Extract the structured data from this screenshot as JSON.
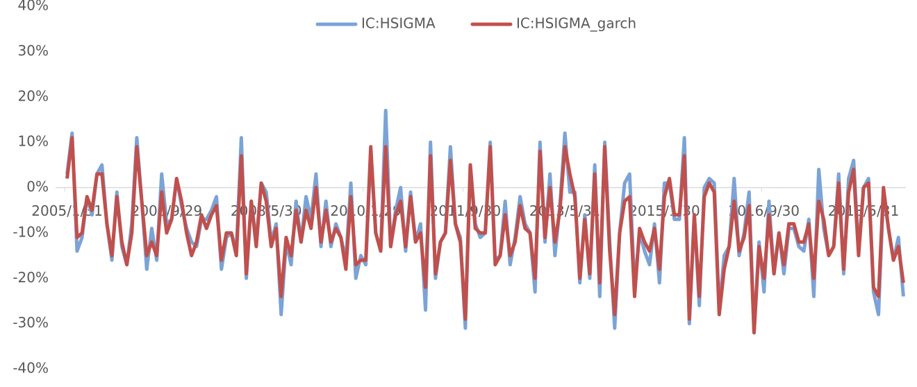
{
  "chart_data": {
    "type": "line",
    "categories": [
      "2005/1/31",
      null,
      null,
      null,
      null,
      null,
      null,
      null,
      null,
      null,
      null,
      null,
      null,
      null,
      null,
      null,
      null,
      null,
      null,
      null,
      "2006/9/29",
      null,
      null,
      null,
      null,
      null,
      null,
      null,
      null,
      null,
      null,
      null,
      null,
      null,
      null,
      null,
      null,
      null,
      null,
      null,
      "2008/5/30",
      null,
      null,
      null,
      null,
      null,
      null,
      null,
      null,
      null,
      null,
      null,
      null,
      null,
      null,
      null,
      null,
      null,
      null,
      null,
      "2010/1/29",
      null,
      null,
      null,
      null,
      null,
      null,
      null,
      null,
      null,
      null,
      null,
      null,
      null,
      null,
      null,
      null,
      null,
      null,
      null,
      "2011/9/30",
      null,
      null,
      null,
      null,
      null,
      null,
      null,
      null,
      null,
      null,
      null,
      null,
      null,
      null,
      null,
      null,
      null,
      null,
      null,
      "2013/5/31",
      null,
      null,
      null,
      null,
      null,
      null,
      null,
      null,
      null,
      null,
      null,
      null,
      null,
      null,
      null,
      null,
      null,
      null,
      null,
      "2015/1/30",
      null,
      null,
      null,
      null,
      null,
      null,
      null,
      null,
      null,
      null,
      null,
      null,
      null,
      null,
      null,
      null,
      null,
      null,
      null,
      "2016/9/30",
      null,
      null,
      null,
      null,
      null,
      null,
      null,
      null,
      null,
      null,
      null,
      null,
      null,
      null,
      null,
      null,
      null,
      null,
      null,
      "2018/5/31",
      null,
      null,
      null,
      null,
      null,
      null,
      null,
      null
    ],
    "series": [
      {
        "name": "IC:HSIGMA",
        "color": "#7ba3d6",
        "values": [
          3,
          12,
          -14,
          -11,
          -2,
          -6,
          3,
          5,
          -8,
          -16,
          -1,
          -13,
          -17,
          -8,
          11,
          -3,
          -18,
          -9,
          -16,
          3,
          -8,
          -7,
          2,
          -4,
          -9,
          -12,
          -13,
          -7,
          -7,
          -5,
          -2,
          -18,
          -11,
          -10,
          -14,
          11,
          -20,
          -3,
          -12,
          1,
          -1,
          -12,
          -8,
          -28,
          -12,
          -17,
          -3,
          -12,
          -2,
          -7,
          3,
          -13,
          -3,
          -13,
          -8,
          -11,
          -16,
          1,
          -20,
          -15,
          -17,
          8,
          -10,
          -14,
          17,
          -13,
          -5,
          0,
          -14,
          -1,
          -12,
          -8,
          -27,
          10,
          -20,
          -12,
          -10,
          9,
          -8,
          -11,
          -31,
          5,
          -8,
          -11,
          -10,
          10,
          -16,
          -15,
          -3,
          -17,
          -11,
          -2,
          -8,
          -10,
          -23,
          10,
          -12,
          3,
          -15,
          -4,
          12,
          -1,
          -1,
          -21,
          -6,
          -20,
          5,
          -24,
          10,
          -12,
          -31,
          -10,
          1,
          3,
          -22,
          -10,
          -14,
          -17,
          -8,
          -21,
          1,
          1,
          -7,
          -7,
          11,
          -30,
          -6,
          -26,
          0,
          2,
          1,
          -27,
          -15,
          -13,
          2,
          -15,
          -10,
          -1,
          -32,
          -12,
          -23,
          -3,
          -19,
          -10,
          -19,
          -9,
          -9,
          -13,
          -14,
          -7,
          -24,
          4,
          -9,
          -15,
          -13,
          3,
          -19,
          2,
          6,
          -14,
          0,
          2,
          -23,
          -28,
          -1,
          -9,
          -16,
          -11,
          -24
        ]
      },
      {
        "name": "IC:HSIGMA_garch",
        "color": "#c0504d",
        "values": [
          2,
          11,
          -11,
          -10,
          -2,
          -5,
          3,
          3,
          -8,
          -15,
          -2,
          -12,
          -17,
          -10,
          9,
          -3,
          -15,
          -12,
          -15,
          -1,
          -10,
          -7,
          2,
          -3,
          -10,
          -15,
          -12,
          -6,
          -9,
          -6,
          -4,
          -16,
          -10,
          -10,
          -15,
          7,
          -19,
          -3,
          -13,
          1,
          -3,
          -13,
          -9,
          -24,
          -11,
          -15,
          -5,
          -12,
          -5,
          -9,
          0,
          -12,
          -5,
          -12,
          -9,
          -11,
          -18,
          -2,
          -17,
          -16,
          -16,
          9,
          -10,
          -14,
          9,
          -13,
          -6,
          -3,
          -13,
          -2,
          -12,
          -10,
          -22,
          7,
          -19,
          -12,
          -10,
          6,
          -8,
          -12,
          -29,
          5,
          -9,
          -10,
          -10,
          9,
          -17,
          -15,
          -6,
          -15,
          -12,
          -4,
          -9,
          -10,
          -20,
          8,
          -11,
          0,
          -12,
          -5,
          9,
          3,
          -2,
          -20,
          -7,
          -19,
          3,
          -21,
          9,
          -14,
          -28,
          -10,
          -3,
          -2,
          -24,
          -9,
          -12,
          -14,
          -9,
          -18,
          -2,
          2,
          -6,
          -6,
          7,
          -29,
          -6,
          -24,
          -2,
          1,
          -1,
          -28,
          -18,
          -13,
          -3,
          -14,
          -11,
          -4,
          -32,
          -13,
          -20,
          -6,
          -19,
          -10,
          -17,
          -8,
          -8,
          -12,
          -12,
          -8,
          -20,
          -3,
          -7,
          -15,
          -13,
          1,
          -18,
          -1,
          4,
          -15,
          0,
          1,
          -22,
          -24,
          0,
          -9,
          -16,
          -13,
          -21
        ]
      }
    ],
    "ylim": [
      -40,
      40
    ],
    "yticks": [
      {
        "value": -40,
        "label": "-40%"
      },
      {
        "value": -30,
        "label": "-30%"
      },
      {
        "value": -20,
        "label": "-20%"
      },
      {
        "value": -10,
        "label": "-10%"
      },
      {
        "value": 0,
        "label": "0%"
      },
      {
        "value": 10,
        "label": "10%"
      },
      {
        "value": 20,
        "label": "20%"
      },
      {
        "value": 30,
        "label": "30%"
      },
      {
        "value": 40,
        "label": "40%"
      }
    ],
    "grid": false,
    "legend": "top"
  }
}
